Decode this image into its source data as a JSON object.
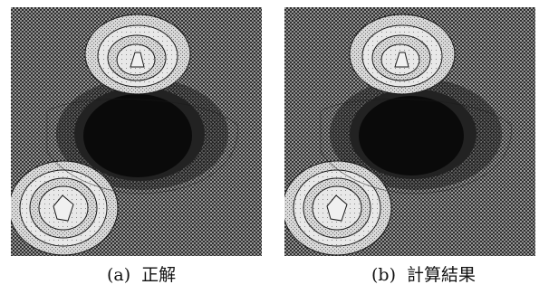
{
  "panels": [
    {
      "id": "a",
      "tag": "(a)",
      "caption": "正解"
    },
    {
      "id": "b",
      "tag": "(b)",
      "caption": "計算結果"
    }
  ],
  "colors": {
    "background_texture": "#3a3a3a",
    "dark_region": "#050505",
    "light_peak": "#f0f0f0",
    "contour_line": "#1a1a1a"
  }
}
